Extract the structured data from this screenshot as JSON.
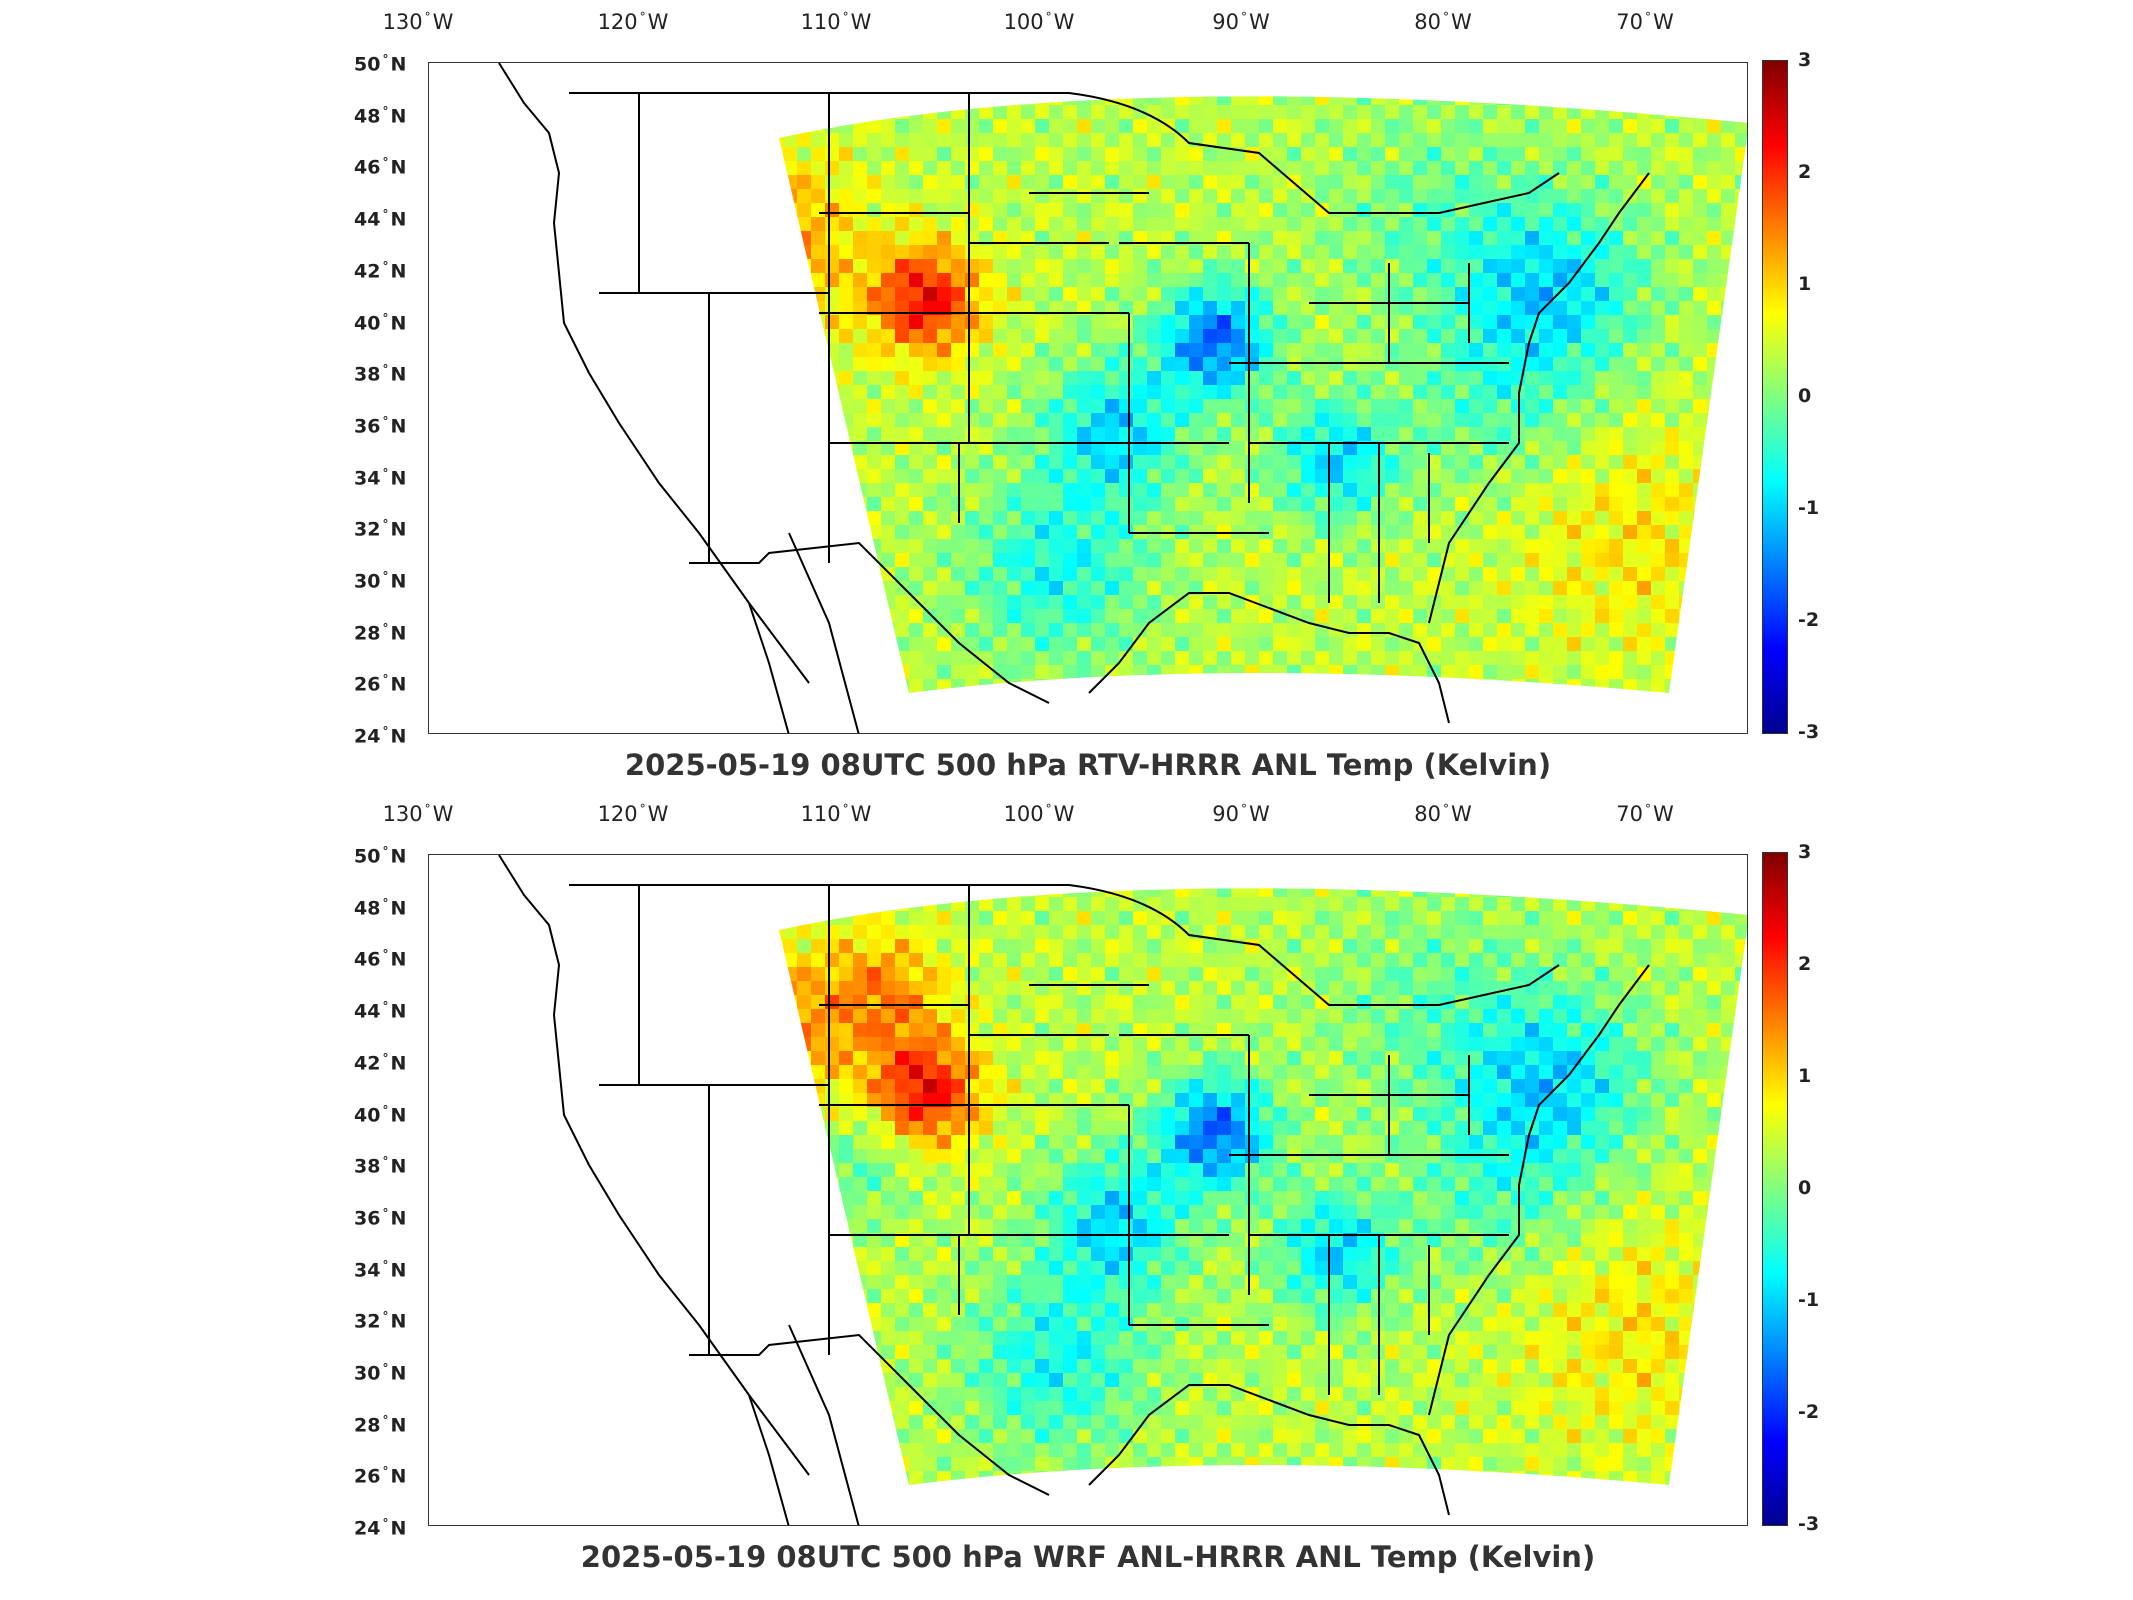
{
  "colorbar": {
    "min": -3,
    "max": 3,
    "ticks": [
      "3",
      "2",
      "1",
      "0",
      "-1",
      "-2",
      "-3"
    ],
    "colormap": [
      "#00008f",
      "#0000ff",
      "#0080ff",
      "#00ffff",
      "#80ff80",
      "#ffff00",
      "#ff8000",
      "#ff0000",
      "#800000"
    ]
  },
  "axes": {
    "longitude_labels": [
      {
        "deg": "130",
        "hem": "W"
      },
      {
        "deg": "120",
        "hem": "W"
      },
      {
        "deg": "110",
        "hem": "W"
      },
      {
        "deg": "100",
        "hem": "W"
      },
      {
        "deg": "90",
        "hem": "W"
      },
      {
        "deg": "80",
        "hem": "W"
      },
      {
        "deg": "70",
        "hem": "W"
      }
    ],
    "latitude_labels": [
      {
        "deg": "50",
        "hem": "N"
      },
      {
        "deg": "48",
        "hem": "N"
      },
      {
        "deg": "46",
        "hem": "N"
      },
      {
        "deg": "44",
        "hem": "N"
      },
      {
        "deg": "42",
        "hem": "N"
      },
      {
        "deg": "40",
        "hem": "N"
      },
      {
        "deg": "38",
        "hem": "N"
      },
      {
        "deg": "36",
        "hem": "N"
      },
      {
        "deg": "34",
        "hem": "N"
      },
      {
        "deg": "32",
        "hem": "N"
      },
      {
        "deg": "30",
        "hem": "N"
      },
      {
        "deg": "28",
        "hem": "N"
      },
      {
        "deg": "26",
        "hem": "N"
      },
      {
        "deg": "24",
        "hem": "N"
      }
    ]
  },
  "panels": [
    {
      "title": "2025-05-19 08UTC 500 hPa RTV-HRRR ANL Temp (Kelvin)"
    },
    {
      "title": "2025-05-19 08UTC 500 hPa WRF ANL-HRRR ANL Temp (Kelvin)"
    }
  ]
}
